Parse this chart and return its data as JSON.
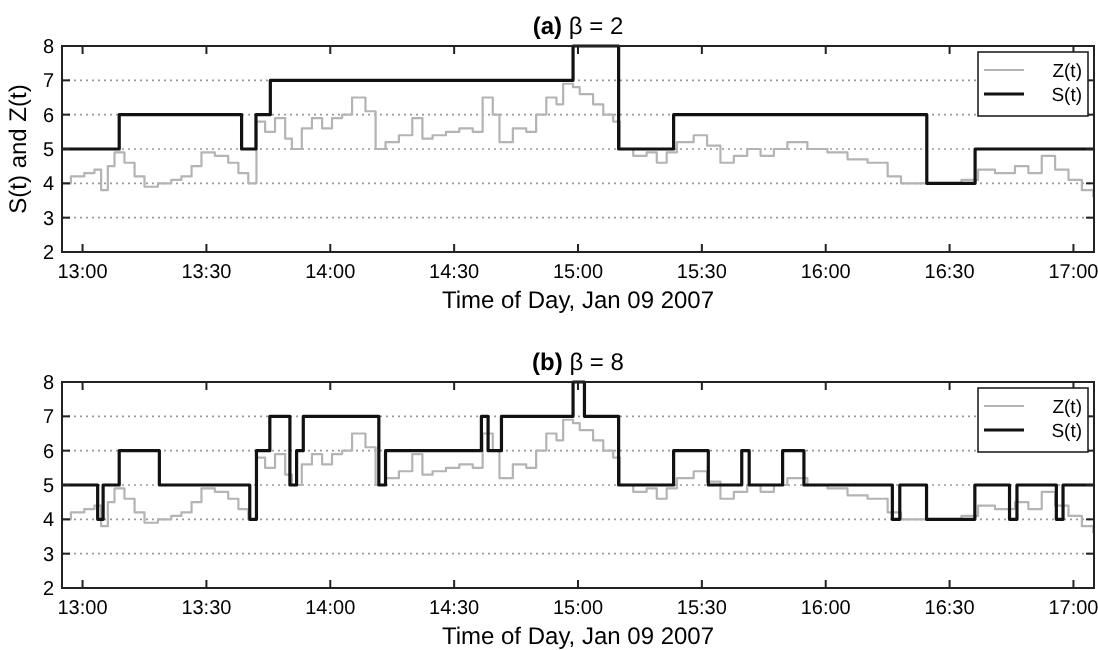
{
  "chart_data": [
    {
      "type": "step",
      "title": "(a) β = 2",
      "xlabel": "Time of Day, Jan 09 2007",
      "ylabel": "S(t) and Z(t)",
      "xlim": [
        12.917,
        17.083
      ],
      "ylim": [
        2,
        8
      ],
      "yticks": [
        2,
        3,
        4,
        5,
        6,
        7,
        8
      ],
      "xticks": [
        {
          "value": 13,
          "label": "13:00"
        },
        {
          "value": 13.5,
          "label": "13:30"
        },
        {
          "value": 14,
          "label": "14:00"
        },
        {
          "value": 14.5,
          "label": "14:30"
        },
        {
          "value": 15,
          "label": "15:00"
        },
        {
          "value": 15.5,
          "label": "15:30"
        },
        {
          "value": 16,
          "label": "16:00"
        },
        {
          "value": 16.5,
          "label": "16:30"
        },
        {
          "value": 17,
          "label": "17:00"
        }
      ],
      "grid": "y",
      "legend": "top right",
      "series": [
        {
          "name": "Z(t)",
          "color": "#b4b4b4",
          "x": [
            12.917,
            12.953,
            13.007,
            13.048,
            13.075,
            13.102,
            13.129,
            13.169,
            13.21,
            13.25,
            13.304,
            13.358,
            13.399,
            13.44,
            13.48,
            13.534,
            13.588,
            13.629,
            13.669,
            13.702,
            13.737,
            13.777,
            13.818,
            13.845,
            13.885,
            13.926,
            13.967,
            14.007,
            14.048,
            14.088,
            14.142,
            14.183,
            14.223,
            14.277,
            14.331,
            14.372,
            14.413,
            14.467,
            14.521,
            14.575,
            14.615,
            14.656,
            14.683,
            14.737,
            14.791,
            14.831,
            14.872,
            14.913,
            14.94,
            14.98,
            15.007,
            15.061,
            15.102,
            15.142,
            15.169,
            15.223,
            15.277,
            15.318,
            15.358,
            15.399,
            15.467,
            15.521,
            15.575,
            15.629,
            15.683,
            15.737,
            15.791,
            15.845,
            15.926,
            16.007,
            16.088,
            16.169,
            16.25,
            16.304,
            16.385,
            16.467,
            16.548,
            16.615,
            16.683,
            16.764,
            16.818,
            16.872,
            16.926,
            16.98,
            17.034,
            17.08
          ],
          "values": [
            4.0,
            4.2,
            4.3,
            4.4,
            3.8,
            4.5,
            4.9,
            4.6,
            4.2,
            3.9,
            4.0,
            4.1,
            4.2,
            4.5,
            4.9,
            4.8,
            4.6,
            4.3,
            4.0,
            5.8,
            5.5,
            5.9,
            5.3,
            5.0,
            5.6,
            5.9,
            5.6,
            5.9,
            6.0,
            6.5,
            6.1,
            5.0,
            5.2,
            5.4,
            5.9,
            5.3,
            5.4,
            5.5,
            5.6,
            5.5,
            6.5,
            6.0,
            5.2,
            5.6,
            5.5,
            6.0,
            6.5,
            6.3,
            6.9,
            6.8,
            6.6,
            6.3,
            6.0,
            5.8,
            5.0,
            4.8,
            4.9,
            4.6,
            4.9,
            5.2,
            5.4,
            5.1,
            4.6,
            4.8,
            5.0,
            4.8,
            5.0,
            5.2,
            5.0,
            4.9,
            4.7,
            4.6,
            4.2,
            4.0,
            4.0,
            4.0,
            4.1,
            4.4,
            4.3,
            4.5,
            4.3,
            4.8,
            4.4,
            4.1,
            3.8,
            3.6
          ]
        },
        {
          "name": "S(t)",
          "color": "#111111",
          "x": [
            12.917,
            13.148,
            13.642,
            13.7,
            13.758,
            14.98,
            15.164,
            15.386,
            16.408,
            16.603,
            17.083
          ],
          "values": [
            5,
            6,
            5,
            6,
            7,
            8,
            5,
            6,
            4,
            5,
            5
          ]
        }
      ]
    },
    {
      "type": "step",
      "title": "(b) β = 8",
      "xlabel": "Time of Day, Jan 09 2007",
      "xlim": [
        12.917,
        17.083
      ],
      "ylim": [
        2,
        8
      ],
      "yticks": [
        2,
        3,
        4,
        5,
        6,
        7,
        8
      ],
      "xticks": [
        {
          "value": 13,
          "label": "13:00"
        },
        {
          "value": 13.5,
          "label": "13:30"
        },
        {
          "value": 14,
          "label": "14:00"
        },
        {
          "value": 14.5,
          "label": "14:30"
        },
        {
          "value": 15,
          "label": "15:00"
        },
        {
          "value": 15.5,
          "label": "15:30"
        },
        {
          "value": 16,
          "label": "16:00"
        },
        {
          "value": 16.5,
          "label": "16:30"
        },
        {
          "value": 17,
          "label": "17:00"
        }
      ],
      "grid": "y",
      "legend": "top right",
      "series": [
        {
          "name": "Z(t)",
          "color": "#b4b4b4",
          "x": [
            12.917,
            12.953,
            13.007,
            13.048,
            13.075,
            13.102,
            13.129,
            13.169,
            13.21,
            13.25,
            13.304,
            13.358,
            13.399,
            13.44,
            13.48,
            13.534,
            13.588,
            13.629,
            13.669,
            13.702,
            13.737,
            13.777,
            13.818,
            13.845,
            13.885,
            13.926,
            13.967,
            14.007,
            14.048,
            14.088,
            14.142,
            14.183,
            14.223,
            14.277,
            14.331,
            14.372,
            14.413,
            14.467,
            14.521,
            14.575,
            14.615,
            14.656,
            14.683,
            14.737,
            14.791,
            14.831,
            14.872,
            14.913,
            14.94,
            14.98,
            15.007,
            15.061,
            15.102,
            15.142,
            15.169,
            15.223,
            15.277,
            15.318,
            15.358,
            15.399,
            15.467,
            15.521,
            15.575,
            15.629,
            15.683,
            15.737,
            15.791,
            15.845,
            15.926,
            16.007,
            16.088,
            16.169,
            16.25,
            16.304,
            16.385,
            16.467,
            16.548,
            16.615,
            16.683,
            16.764,
            16.818,
            16.872,
            16.926,
            16.98,
            17.034,
            17.08
          ],
          "values": [
            4.0,
            4.2,
            4.3,
            4.4,
            3.8,
            4.5,
            4.9,
            4.6,
            4.2,
            3.9,
            4.0,
            4.1,
            4.2,
            4.5,
            4.9,
            4.8,
            4.6,
            4.3,
            4.0,
            5.8,
            5.5,
            5.9,
            5.3,
            5.0,
            5.6,
            5.9,
            5.6,
            5.9,
            6.0,
            6.5,
            6.1,
            5.0,
            5.2,
            5.4,
            5.9,
            5.3,
            5.4,
            5.5,
            5.6,
            5.5,
            6.5,
            6.0,
            5.2,
            5.6,
            5.5,
            6.0,
            6.5,
            6.3,
            6.9,
            6.8,
            6.6,
            6.3,
            6.0,
            5.8,
            5.0,
            4.8,
            4.9,
            4.6,
            4.9,
            5.2,
            5.4,
            5.1,
            4.6,
            4.8,
            5.0,
            4.8,
            5.0,
            5.2,
            5.0,
            4.9,
            4.7,
            4.6,
            4.2,
            4.0,
            4.0,
            4.0,
            4.1,
            4.4,
            4.3,
            4.5,
            4.3,
            4.8,
            4.4,
            4.1,
            3.8,
            3.6
          ]
        },
        {
          "name": "S(t)",
          "color": "#111111",
          "x": [
            12.917,
            13.061,
            13.083,
            13.148,
            13.31,
            13.675,
            13.702,
            13.756,
            13.837,
            13.864,
            13.891,
            14.196,
            14.223,
            14.61,
            14.637,
            14.691,
            14.98,
            15.026,
            15.164,
            15.386,
            15.526,
            15.661,
            15.691,
            15.826,
            15.912,
            16.269,
            16.299,
            16.407,
            16.602,
            16.742,
            16.772,
            16.931,
            16.958,
            17.083
          ],
          "values": [
            5,
            4,
            5,
            6,
            5,
            4,
            6,
            7,
            5,
            6,
            7,
            5,
            6,
            7,
            6,
            7,
            8,
            7,
            5,
            6,
            5,
            6,
            5,
            6,
            5,
            4,
            5,
            4,
            5,
            4,
            5,
            4,
            5,
            5
          ]
        }
      ]
    }
  ]
}
